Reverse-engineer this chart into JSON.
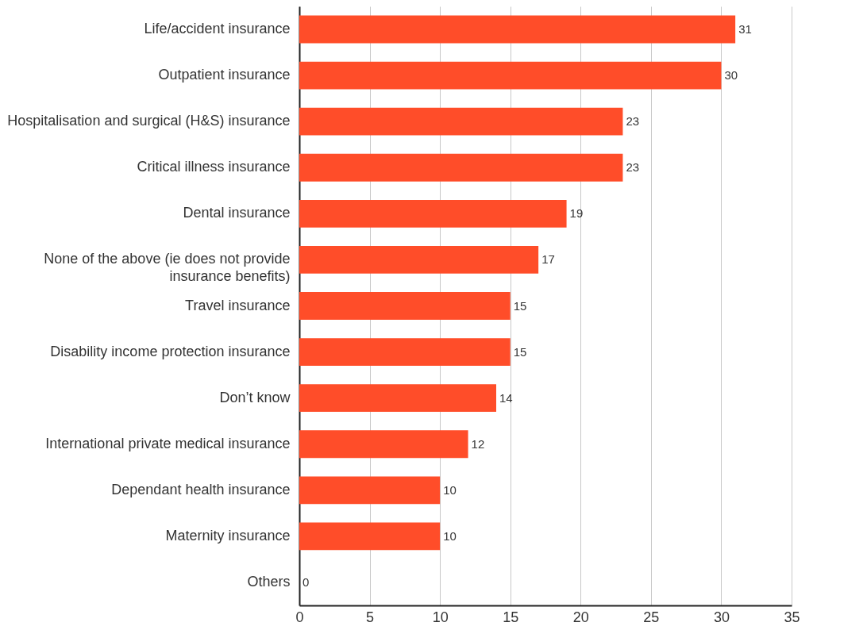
{
  "chart_data": {
    "type": "bar",
    "orientation": "horizontal",
    "categories": [
      "Life/accident insurance",
      "Outpatient insurance",
      "Hospitalisation and surgical (H&S) insurance",
      "Critical illness insurance",
      "Dental insurance",
      "None of the above (ie does not provide insurance benefits)",
      "Travel insurance",
      "Disability income protection insurance",
      "Don’t know",
      "International private medical insurance",
      "Dependant health insurance",
      "Maternity insurance",
      "Others"
    ],
    "values": [
      31,
      30,
      23,
      23,
      19,
      17,
      15,
      15,
      14,
      12,
      10,
      10,
      0
    ],
    "color": "#ff4d29",
    "xlim": [
      0,
      35
    ],
    "xticks": [
      0,
      5,
      10,
      15,
      20,
      25,
      30,
      35
    ],
    "grid": "x",
    "data_labels": true
  }
}
